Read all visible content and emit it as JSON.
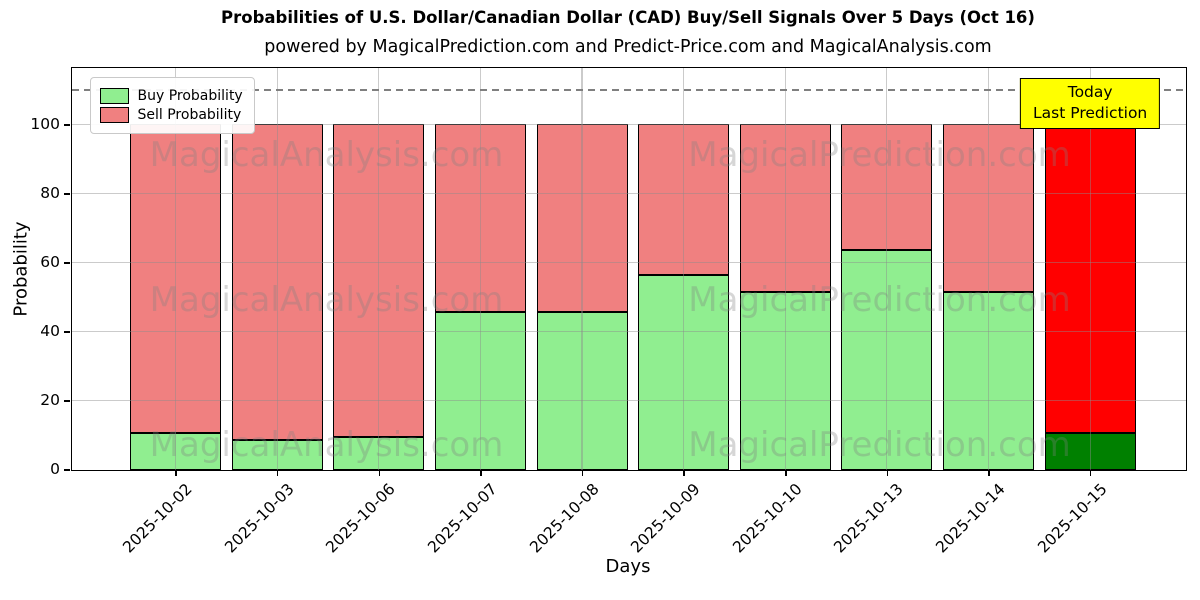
{
  "annotation": {
    "line1": "Today",
    "line2": "Last Prediction",
    "bg_color": "#ffff00"
  },
  "watermark": {
    "texts": [
      "MagicalAnalysis.com",
      "MagicalPrediction.com"
    ]
  },
  "colors": {
    "buy": "#90ee90",
    "sell": "#f08080",
    "buy_today": "#008000",
    "sell_today": "#ff0000",
    "grid": "rgba(140,140,140,0.45)",
    "dashed_line": "#7f7f7f",
    "bar_edge": "#000000"
  },
  "chart_data": {
    "type": "bar",
    "stacked": true,
    "title": "Probabilities of U.S. Dollar/Canadian Dollar (CAD) Buy/Sell Signals Over 5 Days (Oct 16)",
    "subtitle": "powered by MagicalPrediction.com and Predict-Price.com and MagicalAnalysis.com",
    "categories": [
      "2025-10-02",
      "2025-10-03",
      "2025-10-06",
      "2025-10-07",
      "2025-10-08",
      "2025-10-09",
      "2025-10-10",
      "2025-10-13",
      "2025-10-14",
      "2025-10-15"
    ],
    "series": [
      {
        "name": "Buy Probability",
        "color": "#90ee90",
        "today_color": "#008000",
        "values": [
          10.7,
          8.6,
          9.3,
          45.7,
          45.7,
          56.5,
          51.3,
          63.6,
          51.3,
          10.7
        ]
      },
      {
        "name": "Sell Probability",
        "color": "#f08080",
        "today_color": "#ff0000",
        "values": [
          89.3,
          91.4,
          90.7,
          54.3,
          54.3,
          43.5,
          48.7,
          36.4,
          48.7,
          89.3
        ]
      }
    ],
    "xlabel": "Days",
    "ylabel": "Probability",
    "yticks": [
      0,
      20,
      40,
      60,
      80,
      100
    ],
    "ylim": [
      0,
      116.5
    ],
    "hline_y": 110,
    "grid": true,
    "legend_position": "upper left"
  }
}
